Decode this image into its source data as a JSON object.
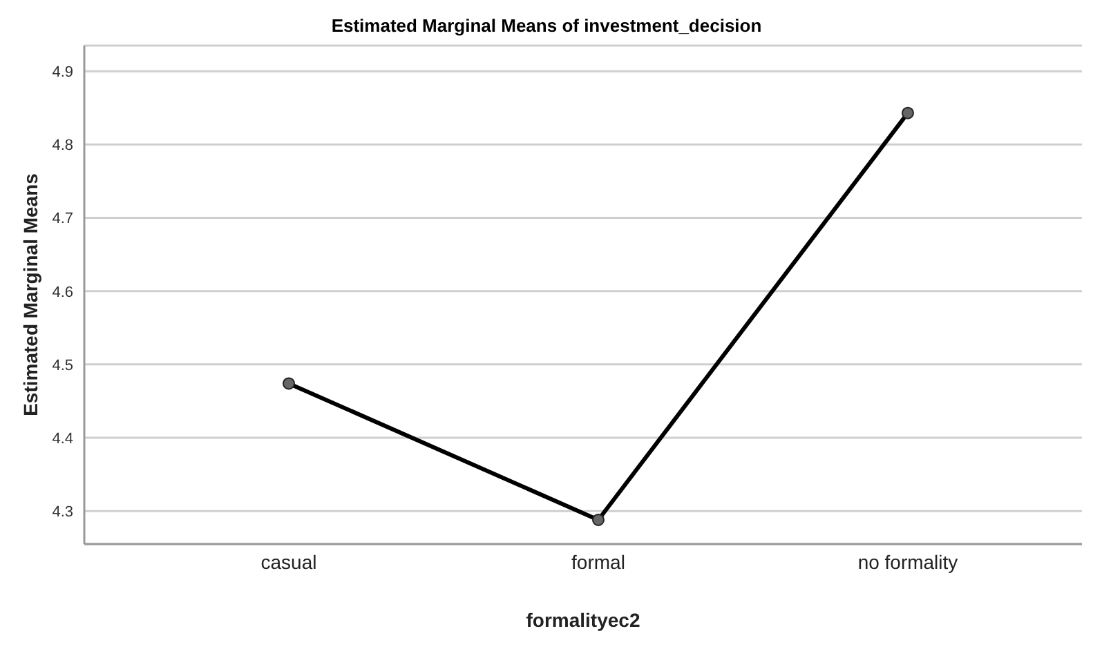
{
  "chart_data": {
    "type": "line",
    "title": "Estimated Marginal Means of investment_decision",
    "xlabel": "formalityec2",
    "ylabel": "Estimated Marginal Means",
    "categories": [
      "casual",
      "formal",
      "no formality"
    ],
    "series": [
      {
        "color": "#000000",
        "values": [
          4.474,
          4.288,
          4.843
        ]
      }
    ],
    "ylim": [
      4.255,
      4.935
    ],
    "yticks": [
      4.3,
      4.4,
      4.5,
      4.6,
      4.7,
      4.8,
      4.9
    ],
    "grid": "y",
    "marker": "circle",
    "line_style": "solid",
    "legend": false
  }
}
